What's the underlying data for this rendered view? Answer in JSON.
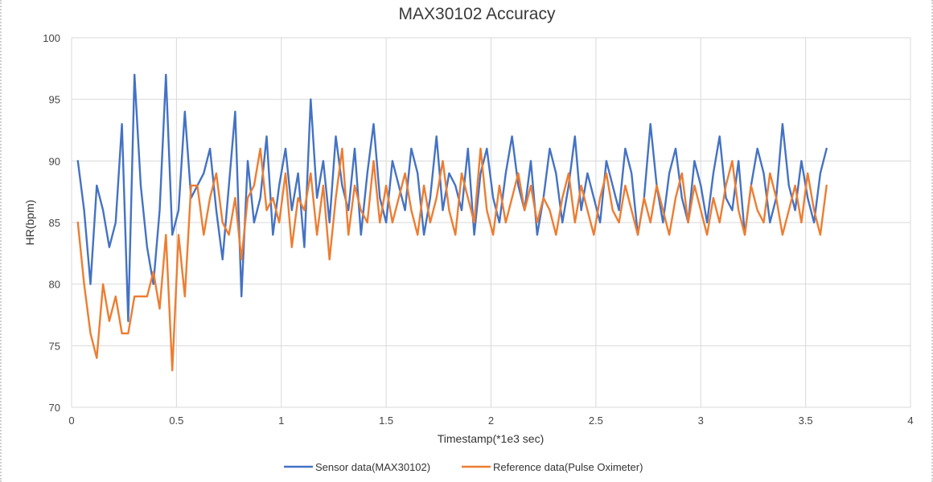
{
  "chart_data": {
    "type": "line",
    "title": "MAX30102 Accuracy",
    "xlabel": "Timestamp(*1e3 sec)",
    "ylabel": "HR(bpm)",
    "xlim": [
      0,
      4
    ],
    "ylim": [
      70,
      100
    ],
    "x_ticks": [
      0,
      0.5,
      1,
      1.5,
      2,
      2.5,
      3,
      3.5,
      4
    ],
    "y_ticks": [
      70,
      75,
      80,
      85,
      90,
      95,
      100
    ],
    "grid": true,
    "legend_position": "bottom",
    "series": [
      {
        "name": "Sensor data(MAX30102)",
        "color": "#4472C4",
        "points": [
          [
            0.03,
            90
          ],
          [
            0.06,
            86
          ],
          [
            0.09,
            80
          ],
          [
            0.12,
            88
          ],
          [
            0.15,
            86
          ],
          [
            0.18,
            83
          ],
          [
            0.21,
            85
          ],
          [
            0.24,
            93
          ],
          [
            0.27,
            77
          ],
          [
            0.3,
            97
          ],
          [
            0.33,
            88
          ],
          [
            0.36,
            83
          ],
          [
            0.39,
            80
          ],
          [
            0.42,
            86
          ],
          [
            0.45,
            97
          ],
          [
            0.48,
            84
          ],
          [
            0.51,
            86
          ],
          [
            0.54,
            94
          ],
          [
            0.57,
            87
          ],
          [
            0.6,
            88
          ],
          [
            0.63,
            89
          ],
          [
            0.66,
            91
          ],
          [
            0.69,
            86
          ],
          [
            0.72,
            82
          ],
          [
            0.75,
            88
          ],
          [
            0.78,
            94
          ],
          [
            0.81,
            79
          ],
          [
            0.84,
            90
          ],
          [
            0.87,
            85
          ],
          [
            0.9,
            87
          ],
          [
            0.93,
            92
          ],
          [
            0.96,
            84
          ],
          [
            0.99,
            88
          ],
          [
            1.02,
            91
          ],
          [
            1.05,
            86
          ],
          [
            1.08,
            89
          ],
          [
            1.11,
            83
          ],
          [
            1.14,
            95
          ],
          [
            1.17,
            87
          ],
          [
            1.2,
            90
          ],
          [
            1.23,
            85
          ],
          [
            1.26,
            92
          ],
          [
            1.29,
            88
          ],
          [
            1.32,
            86
          ],
          [
            1.35,
            91
          ],
          [
            1.38,
            84
          ],
          [
            1.41,
            89
          ],
          [
            1.44,
            93
          ],
          [
            1.47,
            87
          ],
          [
            1.5,
            85
          ],
          [
            1.53,
            90
          ],
          [
            1.56,
            88
          ],
          [
            1.59,
            86
          ],
          [
            1.62,
            91
          ],
          [
            1.65,
            89
          ],
          [
            1.68,
            84
          ],
          [
            1.71,
            87
          ],
          [
            1.74,
            92
          ],
          [
            1.77,
            86
          ],
          [
            1.8,
            89
          ],
          [
            1.83,
            88
          ],
          [
            1.86,
            86
          ],
          [
            1.89,
            91
          ],
          [
            1.92,
            84
          ],
          [
            1.95,
            89
          ],
          [
            1.98,
            91
          ],
          [
            2.01,
            87
          ],
          [
            2.04,
            85
          ],
          [
            2.07,
            89
          ],
          [
            2.1,
            92
          ],
          [
            2.13,
            88
          ],
          [
            2.16,
            86
          ],
          [
            2.19,
            90
          ],
          [
            2.22,
            84
          ],
          [
            2.25,
            87
          ],
          [
            2.28,
            91
          ],
          [
            2.31,
            89
          ],
          [
            2.34,
            85
          ],
          [
            2.37,
            88
          ],
          [
            2.4,
            92
          ],
          [
            2.43,
            86
          ],
          [
            2.46,
            89
          ],
          [
            2.49,
            87
          ],
          [
            2.52,
            85
          ],
          [
            2.55,
            90
          ],
          [
            2.58,
            88
          ],
          [
            2.61,
            86
          ],
          [
            2.64,
            91
          ],
          [
            2.67,
            89
          ],
          [
            2.7,
            84
          ],
          [
            2.73,
            87
          ],
          [
            2.76,
            93
          ],
          [
            2.79,
            88
          ],
          [
            2.82,
            85
          ],
          [
            2.85,
            89
          ],
          [
            2.88,
            91
          ],
          [
            2.91,
            87
          ],
          [
            2.94,
            85
          ],
          [
            2.97,
            90
          ],
          [
            3.0,
            88
          ],
          [
            3.03,
            85
          ],
          [
            3.06,
            89
          ],
          [
            3.09,
            92
          ],
          [
            3.12,
            87
          ],
          [
            3.15,
            86
          ],
          [
            3.18,
            90
          ],
          [
            3.21,
            84
          ],
          [
            3.24,
            88
          ],
          [
            3.27,
            91
          ],
          [
            3.3,
            89
          ],
          [
            3.33,
            85
          ],
          [
            3.36,
            87
          ],
          [
            3.39,
            93
          ],
          [
            3.42,
            88
          ],
          [
            3.45,
            86
          ],
          [
            3.48,
            90
          ],
          [
            3.51,
            87
          ],
          [
            3.54,
            85
          ],
          [
            3.57,
            89
          ],
          [
            3.6,
            91
          ]
        ]
      },
      {
        "name": "Reference data(Pulse Oximeter)",
        "color": "#ED7D31",
        "points": [
          [
            0.03,
            85
          ],
          [
            0.06,
            80
          ],
          [
            0.09,
            76
          ],
          [
            0.12,
            74
          ],
          [
            0.15,
            80
          ],
          [
            0.18,
            77
          ],
          [
            0.21,
            79
          ],
          [
            0.24,
            76
          ],
          [
            0.27,
            76
          ],
          [
            0.3,
            79
          ],
          [
            0.33,
            79
          ],
          [
            0.36,
            79
          ],
          [
            0.39,
            81
          ],
          [
            0.42,
            78
          ],
          [
            0.45,
            84
          ],
          [
            0.48,
            73
          ],
          [
            0.51,
            84
          ],
          [
            0.54,
            79
          ],
          [
            0.57,
            88
          ],
          [
            0.6,
            88
          ],
          [
            0.63,
            84
          ],
          [
            0.66,
            87
          ],
          [
            0.69,
            89
          ],
          [
            0.72,
            85
          ],
          [
            0.75,
            84
          ],
          [
            0.78,
            87
          ],
          [
            0.81,
            82
          ],
          [
            0.84,
            87
          ],
          [
            0.87,
            88
          ],
          [
            0.9,
            91
          ],
          [
            0.93,
            86
          ],
          [
            0.96,
            87
          ],
          [
            0.99,
            85
          ],
          [
            1.02,
            89
          ],
          [
            1.05,
            83
          ],
          [
            1.08,
            87
          ],
          [
            1.11,
            86
          ],
          [
            1.14,
            89
          ],
          [
            1.17,
            84
          ],
          [
            1.2,
            88
          ],
          [
            1.23,
            82
          ],
          [
            1.26,
            87
          ],
          [
            1.29,
            91
          ],
          [
            1.32,
            84
          ],
          [
            1.35,
            88
          ],
          [
            1.38,
            86
          ],
          [
            1.41,
            85
          ],
          [
            1.44,
            90
          ],
          [
            1.47,
            85
          ],
          [
            1.5,
            88
          ],
          [
            1.53,
            85
          ],
          [
            1.56,
            87
          ],
          [
            1.59,
            89
          ],
          [
            1.62,
            86
          ],
          [
            1.65,
            84
          ],
          [
            1.68,
            88
          ],
          [
            1.71,
            85
          ],
          [
            1.74,
            87
          ],
          [
            1.77,
            90
          ],
          [
            1.8,
            86
          ],
          [
            1.83,
            84
          ],
          [
            1.86,
            89
          ],
          [
            1.89,
            87
          ],
          [
            1.92,
            85
          ],
          [
            1.95,
            91
          ],
          [
            1.98,
            86
          ],
          [
            2.01,
            84
          ],
          [
            2.04,
            88
          ],
          [
            2.07,
            85
          ],
          [
            2.1,
            87
          ],
          [
            2.13,
            89
          ],
          [
            2.16,
            86
          ],
          [
            2.19,
            88
          ],
          [
            2.22,
            85
          ],
          [
            2.25,
            87
          ],
          [
            2.28,
            86
          ],
          [
            2.31,
            84
          ],
          [
            2.34,
            87
          ],
          [
            2.37,
            89
          ],
          [
            2.4,
            85
          ],
          [
            2.43,
            88
          ],
          [
            2.46,
            86
          ],
          [
            2.49,
            84
          ],
          [
            2.52,
            87
          ],
          [
            2.55,
            89
          ],
          [
            2.58,
            86
          ],
          [
            2.61,
            85
          ],
          [
            2.64,
            88
          ],
          [
            2.67,
            86
          ],
          [
            2.7,
            84
          ],
          [
            2.73,
            87
          ],
          [
            2.76,
            85
          ],
          [
            2.79,
            88
          ],
          [
            2.82,
            86
          ],
          [
            2.85,
            84
          ],
          [
            2.88,
            87
          ],
          [
            2.91,
            89
          ],
          [
            2.94,
            85
          ],
          [
            2.97,
            88
          ],
          [
            3.0,
            86
          ],
          [
            3.03,
            84
          ],
          [
            3.06,
            87
          ],
          [
            3.09,
            85
          ],
          [
            3.12,
            88
          ],
          [
            3.15,
            90
          ],
          [
            3.18,
            86
          ],
          [
            3.21,
            84
          ],
          [
            3.24,
            88
          ],
          [
            3.27,
            86
          ],
          [
            3.3,
            85
          ],
          [
            3.33,
            89
          ],
          [
            3.36,
            87
          ],
          [
            3.39,
            84
          ],
          [
            3.42,
            86
          ],
          [
            3.45,
            88
          ],
          [
            3.48,
            85
          ],
          [
            3.51,
            89
          ],
          [
            3.54,
            86
          ],
          [
            3.57,
            84
          ],
          [
            3.6,
            88
          ]
        ]
      }
    ]
  }
}
